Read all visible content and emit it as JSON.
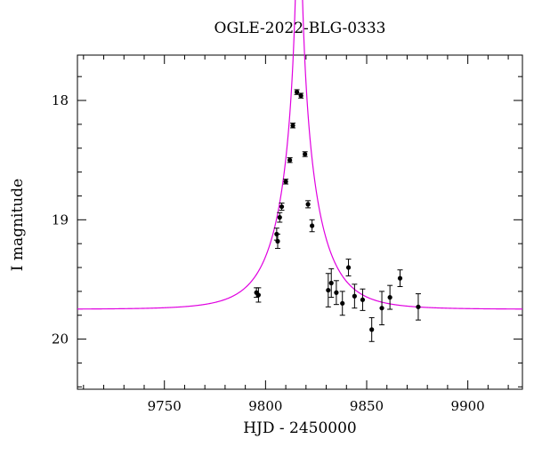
{
  "chart_data": {
    "type": "scatter",
    "title": "OGLE-2022-BLG-0333",
    "xlabel": "HJD - 2450000",
    "ylabel": "I magnitude",
    "xlim": [
      9707,
      9927
    ],
    "ylim": [
      20.42,
      17.62
    ],
    "y_inverted": true,
    "grid": false,
    "legend": "none",
    "x_major_ticks": [
      9750,
      9800,
      9850,
      9900
    ],
    "x_tick_labels": [
      "9750",
      "9800",
      "9850",
      "9900"
    ],
    "x_minor_step": 10,
    "y_major_ticks": [
      18,
      19,
      20
    ],
    "y_tick_labels": [
      "18",
      "19",
      "20"
    ],
    "y_minor_step": 0.2,
    "series": [
      {
        "type": "scatter_errorbar",
        "color": "#000000",
        "points": [
          {
            "x": 9795.5,
            "y": 19.61,
            "err": 0.04
          },
          {
            "x": 9796.5,
            "y": 19.63,
            "err": 0.06
          },
          {
            "x": 9805.5,
            "y": 19.12,
            "err": 0.05
          },
          {
            "x": 9806.0,
            "y": 19.18,
            "err": 0.06
          },
          {
            "x": 9807.0,
            "y": 18.98,
            "err": 0.04
          },
          {
            "x": 9808.0,
            "y": 18.89,
            "err": 0.03
          },
          {
            "x": 9810.0,
            "y": 18.68,
            "err": 0.02
          },
          {
            "x": 9812.0,
            "y": 18.5,
            "err": 0.02
          },
          {
            "x": 9813.5,
            "y": 18.21,
            "err": 0.02
          },
          {
            "x": 9815.5,
            "y": 17.93,
            "err": 0.02
          },
          {
            "x": 9817.5,
            "y": 17.96,
            "err": 0.02
          },
          {
            "x": 9819.5,
            "y": 18.45,
            "err": 0.02
          },
          {
            "x": 9821.0,
            "y": 18.87,
            "err": 0.03
          },
          {
            "x": 9823.0,
            "y": 19.05,
            "err": 0.05
          },
          {
            "x": 9831.0,
            "y": 19.59,
            "err": 0.14
          },
          {
            "x": 9832.5,
            "y": 19.53,
            "err": 0.12
          },
          {
            "x": 9835.0,
            "y": 19.61,
            "err": 0.1
          },
          {
            "x": 9838.0,
            "y": 19.7,
            "err": 0.1
          },
          {
            "x": 9841.0,
            "y": 19.4,
            "err": 0.07
          },
          {
            "x": 9844.0,
            "y": 19.64,
            "err": 0.1
          },
          {
            "x": 9848.0,
            "y": 19.67,
            "err": 0.09
          },
          {
            "x": 9852.5,
            "y": 19.92,
            "err": 0.1
          },
          {
            "x": 9857.5,
            "y": 19.74,
            "err": 0.14
          },
          {
            "x": 9861.5,
            "y": 19.65,
            "err": 0.1
          },
          {
            "x": 9866.5,
            "y": 19.49,
            "err": 0.07
          },
          {
            "x": 9875.5,
            "y": 19.73,
            "err": 0.11
          }
        ]
      },
      {
        "type": "line",
        "color": "#e000e0",
        "model": "paczynski",
        "t0": 9816.5,
        "tE": 20,
        "u0": 0.021,
        "I_baseline": 19.75
      }
    ]
  }
}
